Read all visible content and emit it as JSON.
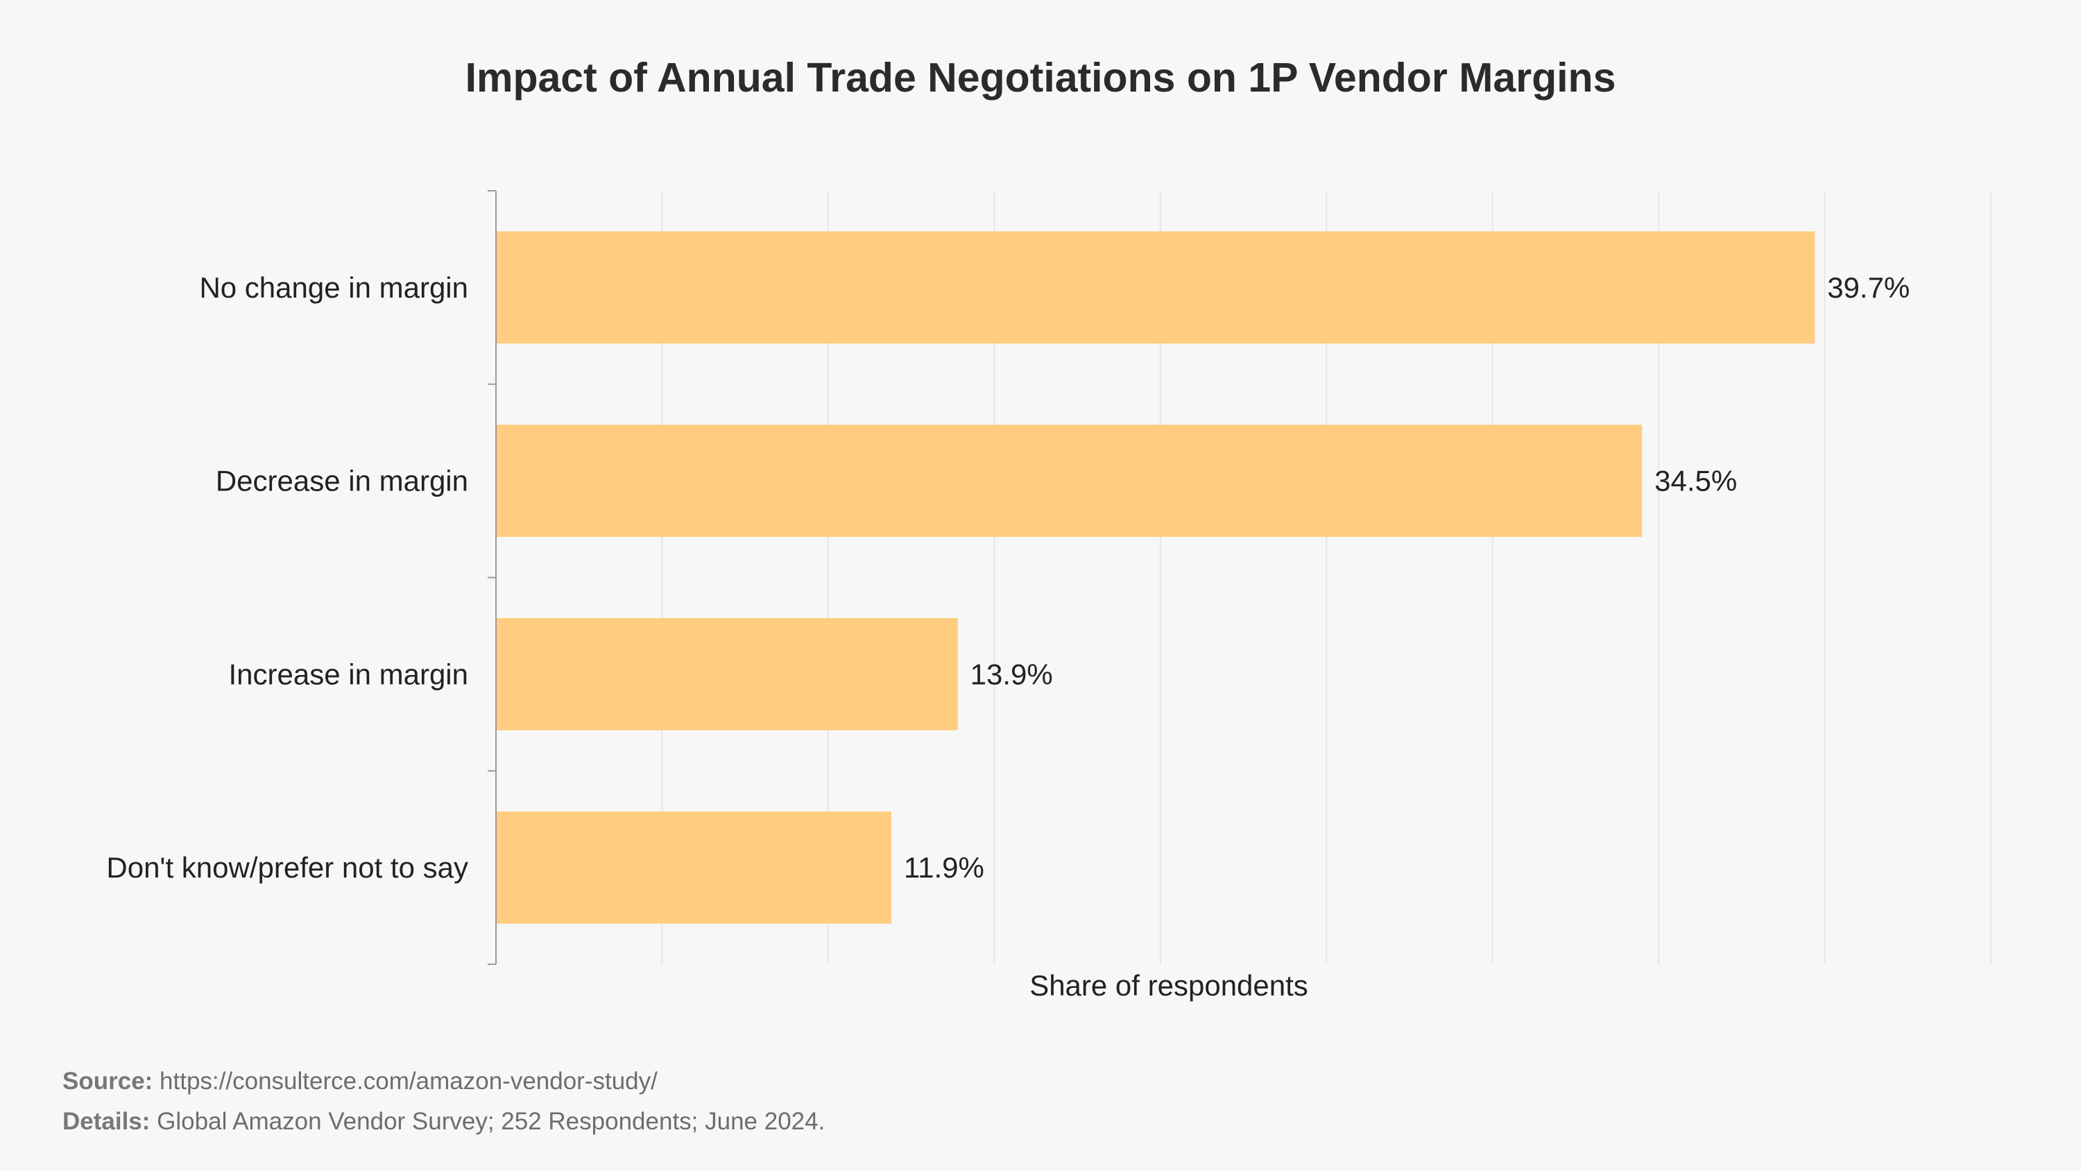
{
  "chart_data": {
    "type": "bar",
    "orientation": "horizontal",
    "title": "Impact of Annual Trade Negotiations on 1P Vendor Margins",
    "xlabel": "Share of respondents",
    "ylabel": "",
    "categories": [
      "No change in margin",
      "Decrease in margin",
      "Increase in margin",
      "Don't know/prefer not to say"
    ],
    "values": [
      39.7,
      34.5,
      13.9,
      11.9
    ],
    "value_labels": [
      "39.7%",
      "34.5%",
      "13.9%",
      "11.9%"
    ],
    "xlim": [
      0,
      45
    ],
    "grid": true,
    "bar_color": "#ffcc80"
  },
  "footer": {
    "source_label": "Source:",
    "source_text": "https://consulterce.com/amazon-vendor-study/",
    "details_label": "Details:",
    "details_text": "Global Amazon Vendor Survey; 252 Respondents; June 2024."
  }
}
